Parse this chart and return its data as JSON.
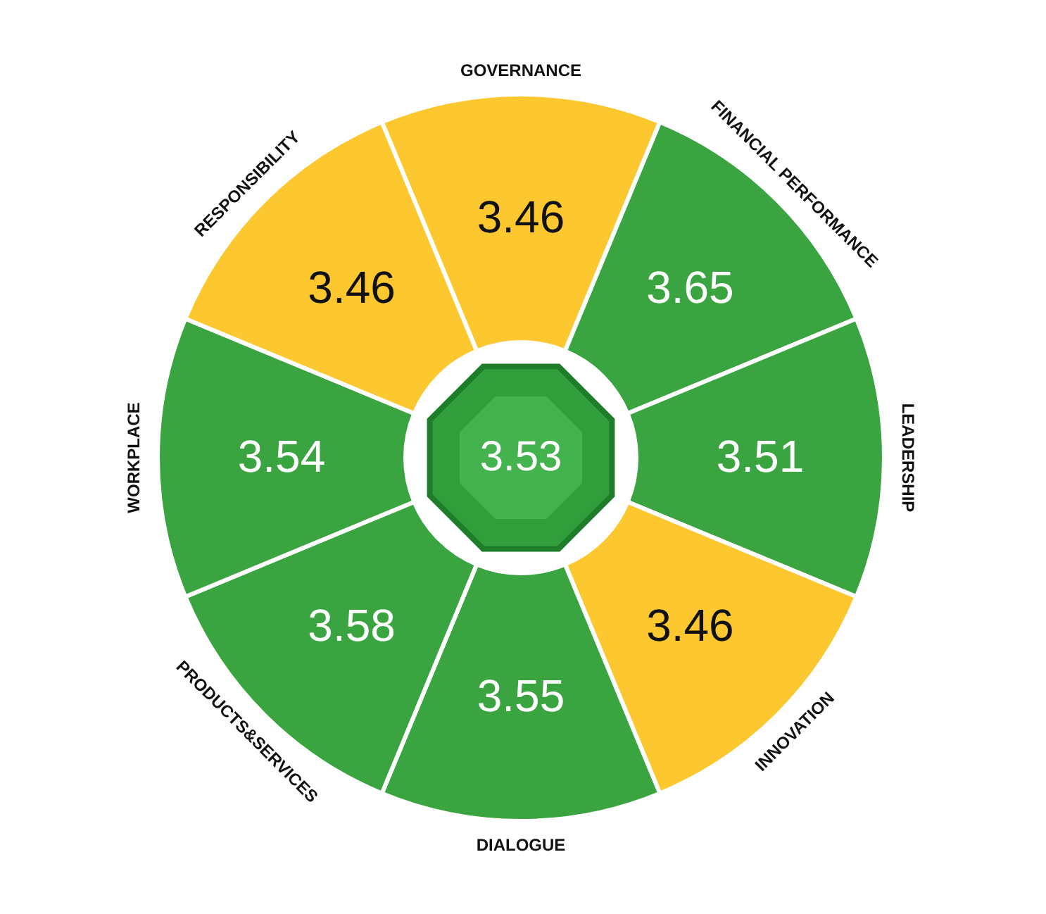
{
  "chart_data": {
    "type": "other",
    "categories": [
      "GOVERNANCE",
      "FINANCIAL PERFORMANCE",
      "LEADERSHIP",
      "INNOVATION",
      "DIALOGUE",
      "PRODUCTS&SERVICES",
      "WORKPLACE",
      "RESPONSIBILITY"
    ],
    "values": [
      3.46,
      3.65,
      3.51,
      3.46,
      3.55,
      3.58,
      3.54,
      3.46
    ],
    "colors": [
      "#fcc72f",
      "#3aa540",
      "#3aa540",
      "#fcc72f",
      "#3aa540",
      "#3aa540",
      "#3aa540",
      "#fcc72f"
    ],
    "data_labels": true,
    "annotations": [
      "3.53"
    ]
  }
}
